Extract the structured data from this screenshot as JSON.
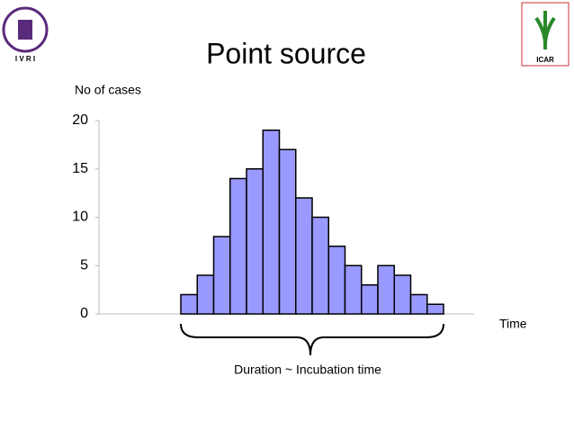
{
  "chart_data": {
    "type": "bar",
    "title": "Point source",
    "y_label": "No of cases",
    "x_label": "Time",
    "annotation": "Duration ~ Incubation time",
    "logo_left_text": "I V R I",
    "logo_right_text": "ICAR",
    "categories": [
      null,
      null,
      null,
      null,
      null,
      null,
      null,
      null,
      null,
      null,
      null,
      null,
      null,
      null,
      null,
      null
    ],
    "values": [
      2,
      4,
      8,
      14,
      15,
      19,
      17,
      12,
      10,
      7,
      5,
      3,
      5,
      4,
      2,
      1
    ],
    "color": "#9999ff",
    "ylim": [
      0,
      20
    ],
    "yticks": [
      0,
      5,
      10,
      15,
      20
    ],
    "grid": false
  }
}
